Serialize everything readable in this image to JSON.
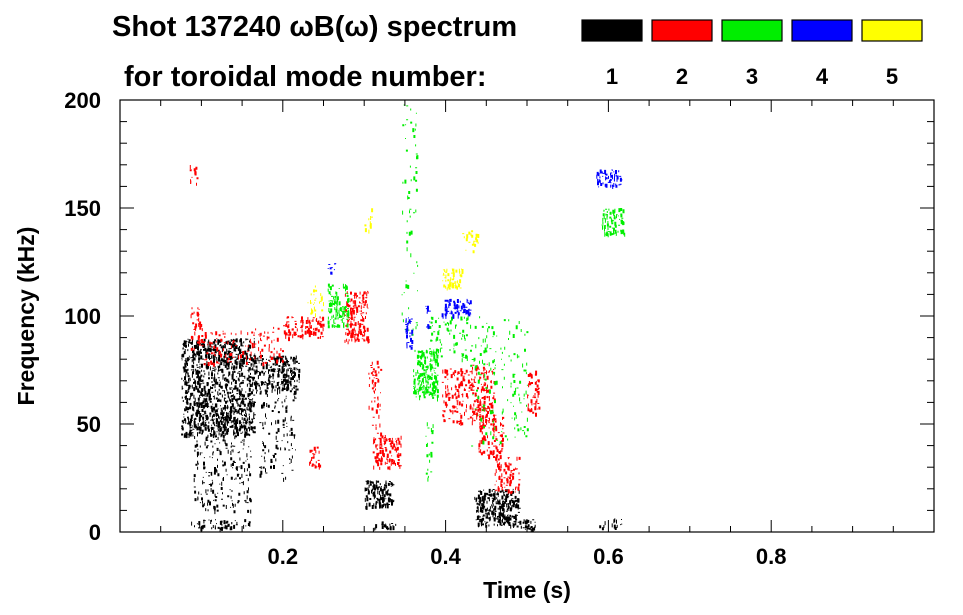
{
  "chart_data": {
    "type": "scatter",
    "title_line1": "Shot 137240 ωB(ω) spectrum",
    "title_line2": "for toroidal mode number:",
    "xlabel": "Time (s)",
    "ylabel": "Frequency (kHz)",
    "xlim": [
      0.0,
      1.0
    ],
    "ylim": [
      0,
      200
    ],
    "xticks": [
      0.2,
      0.4,
      0.6,
      0.8
    ],
    "xtick_labels": [
      "0.2",
      "0.4",
      "0.6",
      "0.8"
    ],
    "yticks": [
      0,
      50,
      100,
      150,
      200
    ],
    "ytick_labels": [
      "0",
      "50",
      "100",
      "150",
      "200"
    ],
    "legend": [
      {
        "label": "1",
        "color": "#000000"
      },
      {
        "label": "2",
        "color": "#ff0000"
      },
      {
        "label": "3",
        "color": "#00ee00"
      },
      {
        "label": "4",
        "color": "#0000ff"
      },
      {
        "label": "5",
        "color": "#ffff00"
      }
    ],
    "series": [
      {
        "name": "n=1",
        "color": "#000000",
        "regions": [
          {
            "t": [
              0.075,
              0.165
            ],
            "f": [
              45,
              90
            ],
            "density": 0.45
          },
          {
            "t": [
              0.09,
              0.16
            ],
            "f": [
              10,
              50
            ],
            "density": 0.14
          },
          {
            "t": [
              0.165,
              0.22
            ],
            "f": [
              65,
              82
            ],
            "density": 0.45
          },
          {
            "t": [
              0.17,
              0.215
            ],
            "f": [
              25,
              65
            ],
            "density": 0.1
          },
          {
            "t": [
              0.3,
              0.335
            ],
            "f": [
              12,
              24
            ],
            "density": 0.55
          },
          {
            "t": [
              0.435,
              0.49
            ],
            "f": [
              3,
              20
            ],
            "density": 0.55
          },
          {
            "t": [
              0.49,
              0.51
            ],
            "f": [
              1,
              6
            ],
            "density": 0.5
          },
          {
            "t": [
              0.085,
              0.16
            ],
            "f": [
              2,
              6
            ],
            "density": 0.3
          },
          {
            "t": [
              0.31,
              0.34
            ],
            "f": [
              1,
              5
            ],
            "density": 0.3
          },
          {
            "t": [
              0.58,
              0.62
            ],
            "f": [
              2,
              7
            ],
            "density": 0.12
          }
        ]
      },
      {
        "name": "n=2",
        "color": "#ff0000",
        "regions": [
          {
            "t": [
              0.085,
              0.1
            ],
            "f": [
              85,
              105
            ],
            "density": 0.2
          },
          {
            "t": [
              0.1,
              0.2
            ],
            "f": [
              78,
              95
            ],
            "density": 0.12
          },
          {
            "t": [
              0.2,
              0.25
            ],
            "f": [
              90,
              100
            ],
            "density": 0.35
          },
          {
            "t": [
              0.275,
              0.305
            ],
            "f": [
              88,
              112
            ],
            "density": 0.4
          },
          {
            "t": [
              0.305,
              0.32
            ],
            "f": [
              45,
              80
            ],
            "density": 0.18
          },
          {
            "t": [
              0.31,
              0.345
            ],
            "f": [
              30,
              45
            ],
            "density": 0.4
          },
          {
            "t": [
              0.395,
              0.46
            ],
            "f": [
              50,
              78
            ],
            "density": 0.25
          },
          {
            "t": [
              0.44,
              0.47
            ],
            "f": [
              35,
              55
            ],
            "density": 0.3
          },
          {
            "t": [
              0.46,
              0.49
            ],
            "f": [
              18,
              35
            ],
            "density": 0.3
          },
          {
            "t": [
              0.5,
              0.515
            ],
            "f": [
              55,
              75
            ],
            "density": 0.3
          },
          {
            "t": [
              0.23,
              0.245
            ],
            "f": [
              30,
              40
            ],
            "density": 0.3
          },
          {
            "t": [
              0.085,
              0.095
            ],
            "f": [
              160,
              170
            ],
            "density": 0.2
          }
        ]
      },
      {
        "name": "n=3",
        "color": "#00ee00",
        "regions": [
          {
            "t": [
              0.255,
              0.28
            ],
            "f": [
              95,
              115
            ],
            "density": 0.4
          },
          {
            "t": [
              0.36,
              0.39
            ],
            "f": [
              62,
              85
            ],
            "density": 0.5
          },
          {
            "t": [
              0.345,
              0.365
            ],
            "f": [
              90,
              200
            ],
            "density": 0.05
          },
          {
            "t": [
              0.38,
              0.43
            ],
            "f": [
              80,
              100
            ],
            "density": 0.12
          },
          {
            "t": [
              0.43,
              0.5
            ],
            "f": [
              40,
              100
            ],
            "density": 0.06
          },
          {
            "t": [
              0.59,
              0.62
            ],
            "f": [
              138,
              150
            ],
            "density": 0.4
          },
          {
            "t": [
              0.375,
              0.385
            ],
            "f": [
              25,
              55
            ],
            "density": 0.12
          }
        ]
      },
      {
        "name": "n=4",
        "color": "#0000ff",
        "regions": [
          {
            "t": [
              0.35,
              0.358
            ],
            "f": [
              85,
              100
            ],
            "density": 0.5
          },
          {
            "t": [
              0.395,
              0.43
            ],
            "f": [
              100,
              108
            ],
            "density": 0.45
          },
          {
            "t": [
              0.585,
              0.615
            ],
            "f": [
              160,
              168
            ],
            "density": 0.45
          },
          {
            "t": [
              0.255,
              0.265
            ],
            "f": [
              120,
              125
            ],
            "density": 0.3
          },
          {
            "t": [
              0.375,
              0.38
            ],
            "f": [
              95,
              105
            ],
            "density": 0.4
          }
        ]
      },
      {
        "name": "n=5",
        "color": "#ffff00",
        "regions": [
          {
            "t": [
              0.395,
              0.42
            ],
            "f": [
              113,
              122
            ],
            "density": 0.5
          },
          {
            "t": [
              0.23,
              0.25
            ],
            "f": [
              100,
              115
            ],
            "density": 0.15
          },
          {
            "t": [
              0.42,
              0.44
            ],
            "f": [
              130,
              140
            ],
            "density": 0.2
          },
          {
            "t": [
              0.3,
              0.31
            ],
            "f": [
              140,
              150
            ],
            "density": 0.2
          }
        ]
      }
    ]
  }
}
